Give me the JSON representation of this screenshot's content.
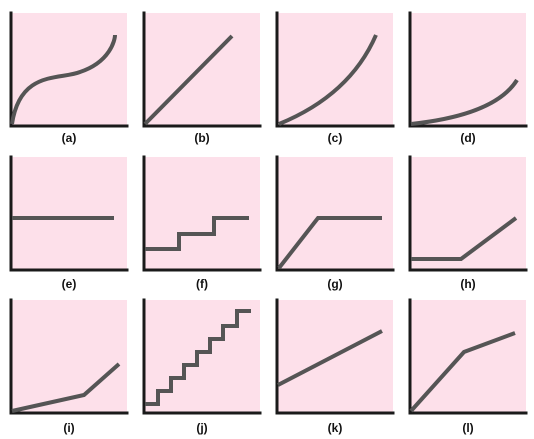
{
  "panels": [
    {
      "label": "(a)",
      "shape": "cubic-s-curve"
    },
    {
      "label": "(b)",
      "shape": "linear-increase"
    },
    {
      "label": "(c)",
      "shape": "convex-increase"
    },
    {
      "label": "(d)",
      "shape": "flat-then-steep-increase"
    },
    {
      "label": "(e)",
      "shape": "constant"
    },
    {
      "label": "(f)",
      "shape": "step-function"
    },
    {
      "label": "(g)",
      "shape": "rise-then-plateau"
    },
    {
      "label": "(h)",
      "shape": "plateau-then-rise"
    },
    {
      "label": "(i)",
      "shape": "gentle-then-steeper-line"
    },
    {
      "label": "(j)",
      "shape": "many-small-steps"
    },
    {
      "label": "(k)",
      "shape": "linear-with-intercept"
    },
    {
      "label": "(l)",
      "shape": "steep-then-gentle-line"
    }
  ],
  "colors": {
    "panel_background": "#fde0ea",
    "axis": "#1a1a1a",
    "curve": "#555555"
  }
}
